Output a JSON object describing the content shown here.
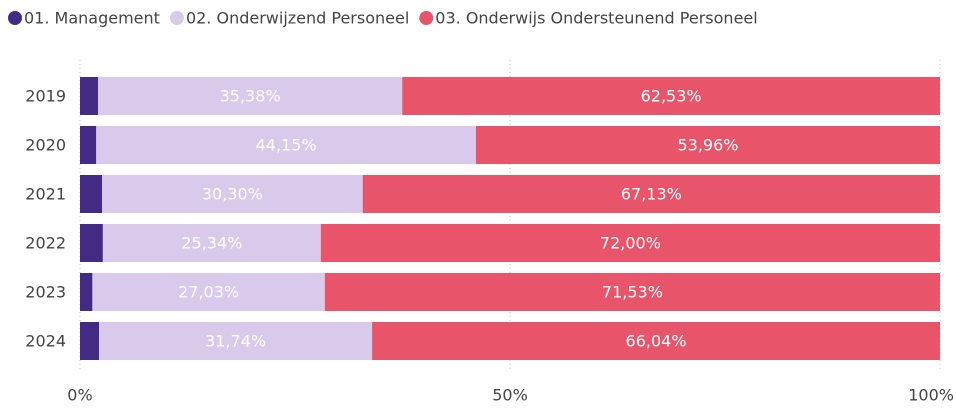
{
  "chart_data": {
    "type": "stacked-bar-horizontal",
    "categories": [
      "2019",
      "2020",
      "2021",
      "2022",
      "2023",
      "2024"
    ],
    "series": [
      {
        "name": "01. Management",
        "color": "#432a85",
        "values": [
          2.09,
          1.89,
          2.57,
          2.66,
          1.44,
          2.22
        ]
      },
      {
        "name": "02. Onderwijzend Personeel",
        "color": "#d9caec",
        "values": [
          35.38,
          44.15,
          30.3,
          25.34,
          27.03,
          31.74
        ],
        "value_labels": [
          "35,38%",
          "44,15%",
          "30,30%",
          "25,34%",
          "27,03%",
          "31,74%"
        ]
      },
      {
        "name": "03. Onderwijs Ondersteunend Personeel",
        "color": "#e8556a",
        "values": [
          62.53,
          53.96,
          67.13,
          72.0,
          71.53,
          66.04
        ],
        "value_labels": [
          "62,53%",
          "53,96%",
          "67,13%",
          "72,00%",
          "71,53%",
          "66,04%"
        ]
      }
    ],
    "xlim": [
      0,
      100
    ],
    "xticks": [
      {
        "value": 0,
        "label": "0%"
      },
      {
        "value": 50,
        "label": "50%"
      },
      {
        "value": 100,
        "label": "100%"
      }
    ],
    "grid": true,
    "legend": "top"
  }
}
